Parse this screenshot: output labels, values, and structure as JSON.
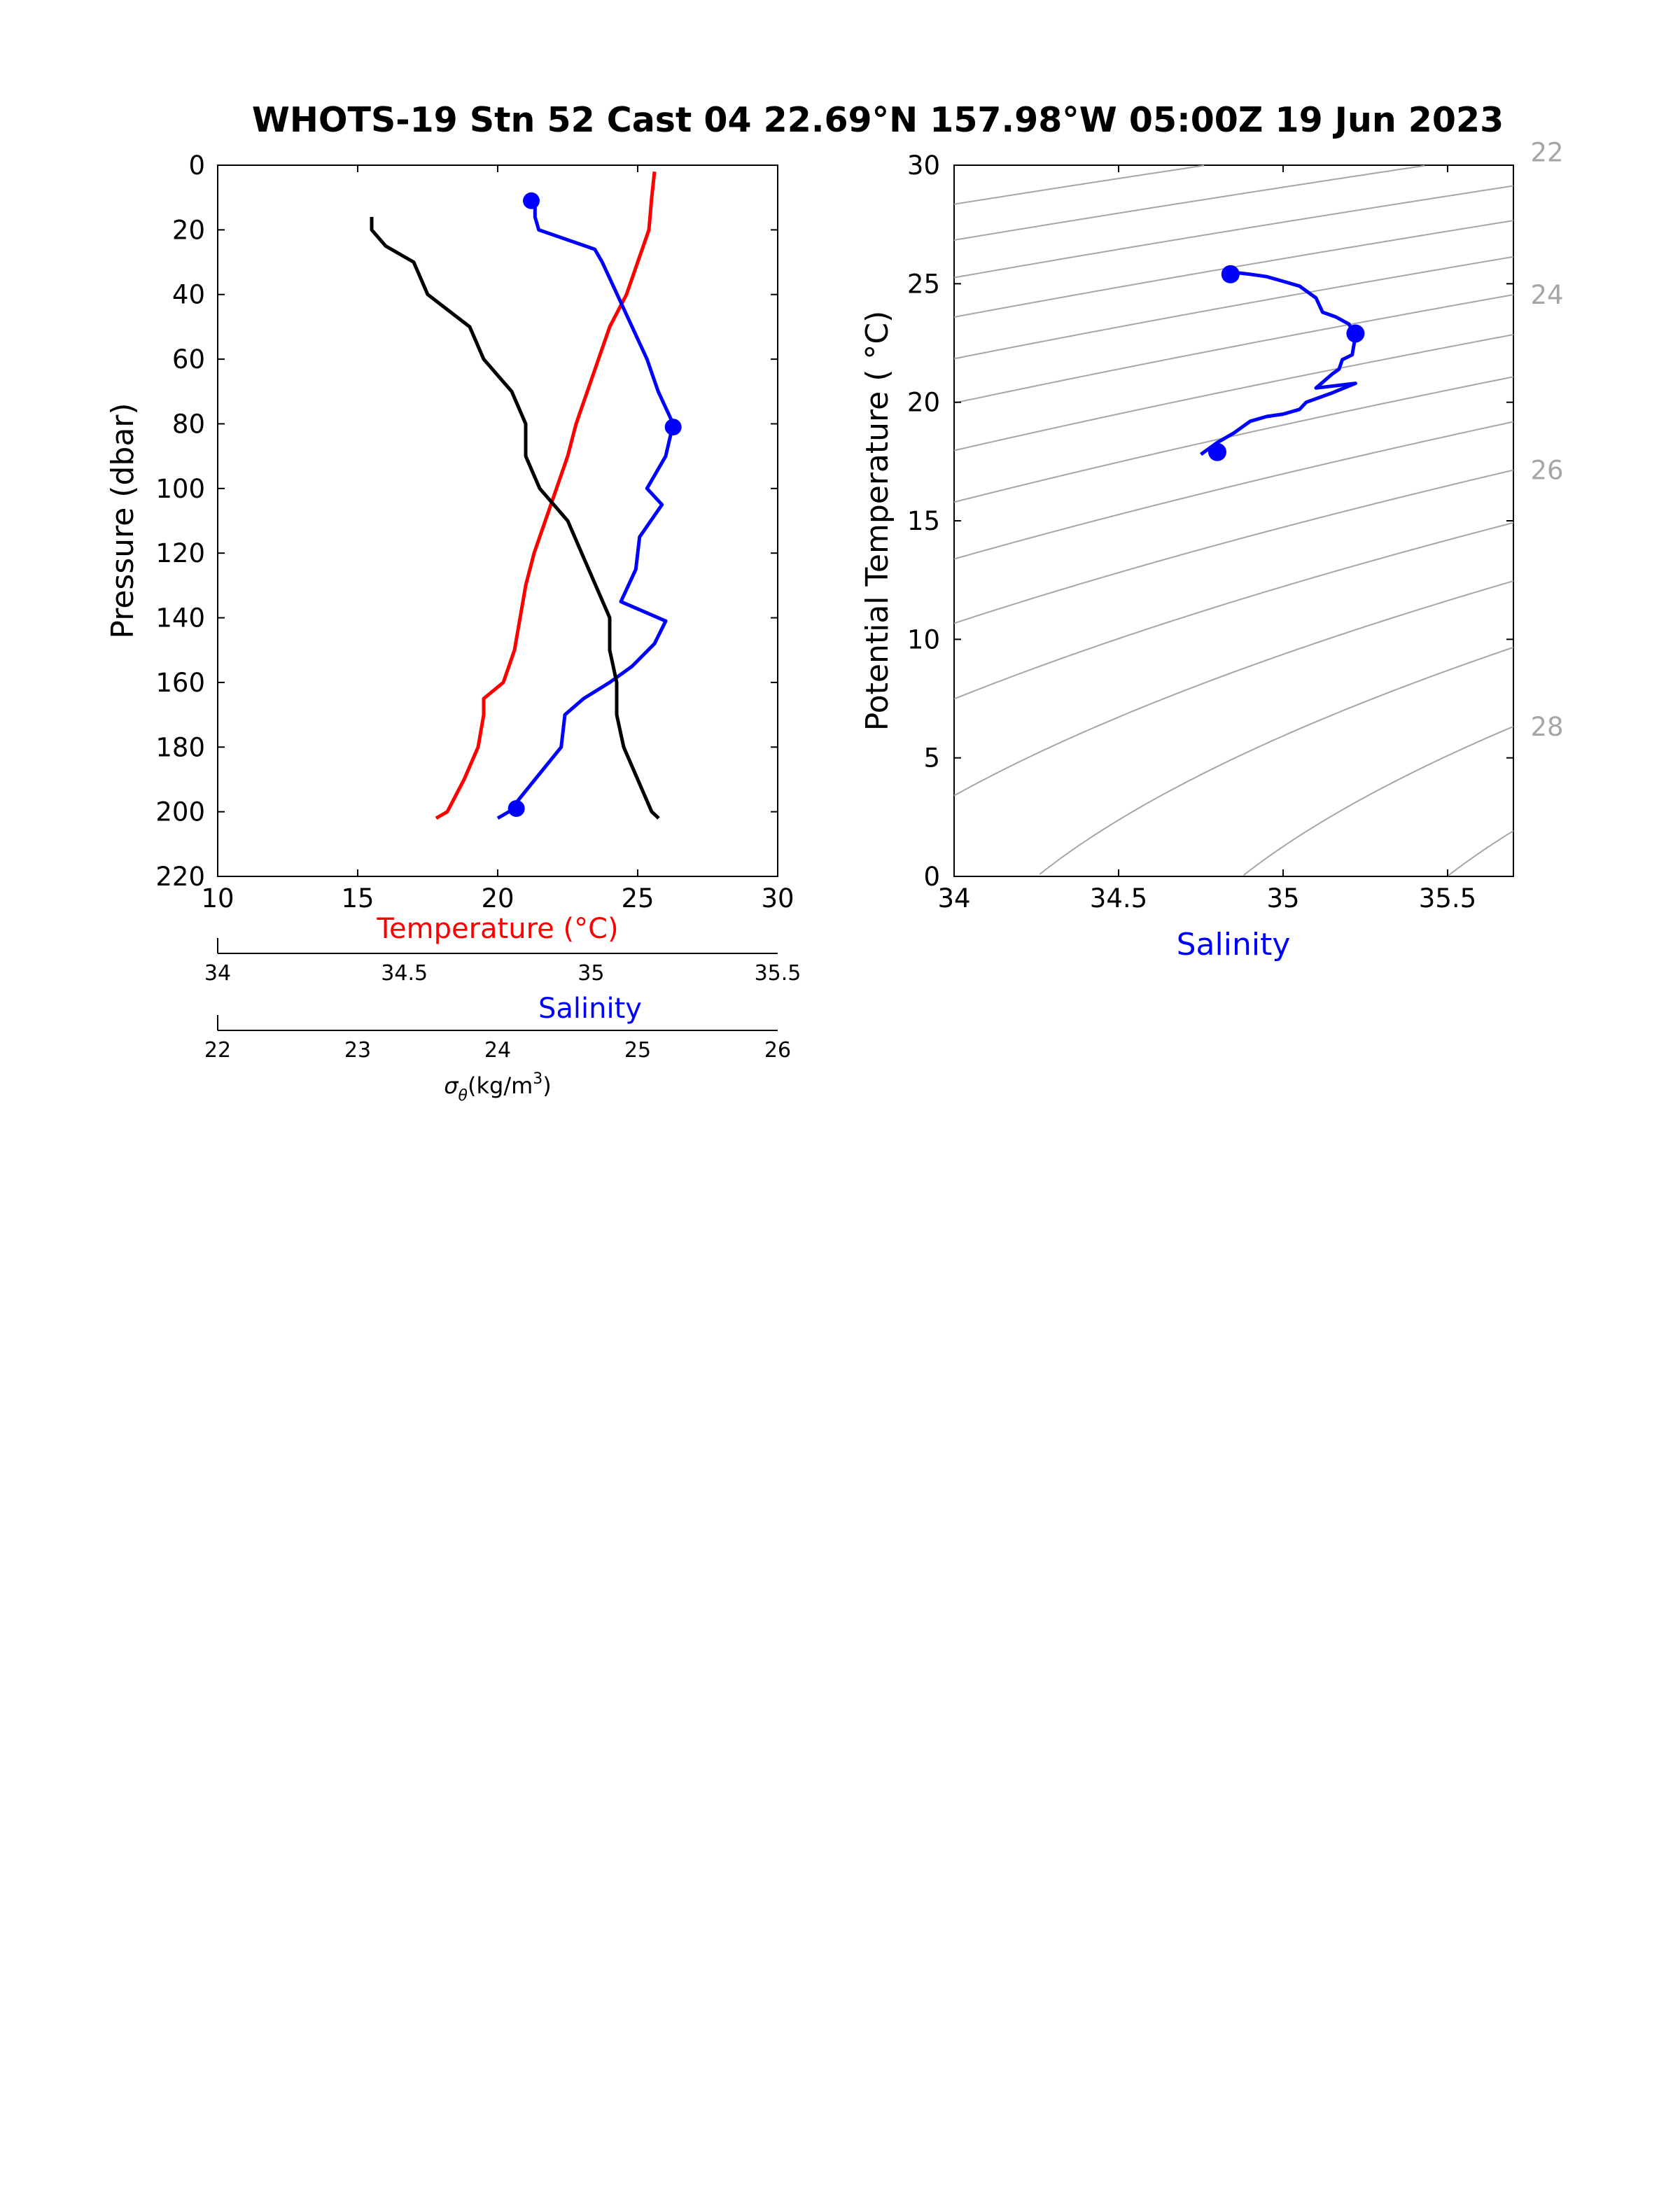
{
  "title": "WHOTS-19 Stn 52 Cast 04   22.69°N 157.98°W   05:00Z 19 Jun 2023",
  "colors": {
    "temperature": "#ff0000",
    "salinity": "#0000ff",
    "density": "#000000",
    "isopycnal": "#a6a6a6"
  },
  "chart_data": [
    {
      "type": "line",
      "name": "profile",
      "ylabel": "Pressure (dbar)",
      "ylim": [
        0,
        220
      ],
      "yticks": [
        "0",
        "20",
        "40",
        "60",
        "80",
        "100",
        "120",
        "140",
        "160",
        "180",
        "200",
        "220"
      ],
      "axes": {
        "temperature": {
          "label": "Temperature (°C)",
          "lim": [
            10,
            30
          ],
          "ticks": [
            "10",
            "15",
            "20",
            "25",
            "30"
          ]
        },
        "salinity": {
          "label": "Salinity",
          "lim": [
            34,
            35.5
          ],
          "ticks": [
            "34",
            "34.5",
            "35",
            "35.5"
          ]
        },
        "sigma": {
          "label_symbol": "σ",
          "label_sub": "θ",
          "label_main": "(kg/m",
          "label_sup": "3",
          "label_close": ")",
          "lim": [
            22,
            26
          ],
          "ticks": [
            "22",
            "23",
            "24",
            "25",
            "26"
          ]
        }
      },
      "series": [
        {
          "key": "temperature",
          "pressure": [
            2,
            10,
            20,
            30,
            40,
            50,
            60,
            70,
            80,
            90,
            100,
            110,
            120,
            130,
            140,
            150,
            160,
            165,
            170,
            180,
            190,
            200,
            202
          ],
          "values": [
            25.6,
            25.5,
            25.4,
            25.0,
            24.6,
            24.0,
            23.6,
            23.2,
            22.8,
            22.5,
            22.1,
            21.7,
            21.3,
            21.0,
            20.8,
            20.6,
            20.2,
            19.5,
            19.5,
            19.3,
            18.8,
            18.2,
            17.8
          ]
        },
        {
          "key": "salinity",
          "pressure": [
            11,
            16,
            20,
            26,
            30,
            35,
            40,
            50,
            60,
            70,
            80,
            90,
            100,
            105,
            115,
            125,
            135,
            141,
            148,
            155,
            160,
            165,
            170,
            180,
            190,
            200,
            202
          ],
          "values": [
            34.85,
            34.85,
            34.86,
            35.01,
            35.03,
            35.05,
            35.07,
            35.11,
            35.15,
            35.18,
            35.22,
            35.2,
            35.15,
            35.19,
            35.13,
            35.12,
            35.08,
            35.2,
            35.17,
            35.11,
            35.05,
            34.98,
            34.93,
            34.92,
            34.85,
            34.78,
            34.75
          ],
          "markers": [
            [
              11,
              34.84
            ],
            [
              81,
              35.22
            ],
            [
              199,
              34.8
            ]
          ]
        },
        {
          "key": "sigma",
          "pressure": [
            16,
            20,
            25,
            30,
            40,
            50,
            60,
            70,
            80,
            90,
            100,
            110,
            120,
            130,
            140,
            150,
            160,
            170,
            180,
            190,
            200,
            202
          ],
          "values": [
            23.1,
            23.1,
            23.2,
            23.4,
            23.5,
            23.8,
            23.9,
            24.1,
            24.2,
            24.2,
            24.3,
            24.5,
            24.6,
            24.7,
            24.8,
            24.8,
            24.85,
            24.85,
            24.9,
            25.0,
            25.1,
            25.15
          ]
        }
      ]
    },
    {
      "type": "line",
      "name": "theta-s",
      "xlabel": "Salinity",
      "ylabel": "Potential Temperature ( °C)",
      "xlim": [
        34,
        35.7
      ],
      "ylim": [
        0,
        30
      ],
      "xticks": [
        "34",
        "34.5",
        "35",
        "35.5"
      ],
      "yticks": [
        "0",
        "5",
        "10",
        "15",
        "20",
        "25",
        "30"
      ],
      "isopycnal_labels": [
        "22",
        "24",
        "26",
        "28"
      ],
      "series": [
        {
          "name": "",
          "salinity": [
            34.84,
            34.9,
            34.95,
            35.0,
            35.05,
            35.1,
            35.12,
            35.16,
            35.2,
            35.22,
            35.21,
            35.18,
            35.17,
            35.15,
            35.1,
            35.22,
            35.15,
            35.07,
            35.05,
            35.0,
            34.95,
            34.9,
            34.85,
            34.8,
            34.75
          ],
          "theta": [
            25.5,
            25.4,
            25.3,
            25.1,
            24.9,
            24.4,
            23.8,
            23.6,
            23.3,
            22.8,
            22.0,
            21.8,
            21.4,
            21.2,
            20.6,
            20.8,
            20.4,
            20.0,
            19.7,
            19.5,
            19.4,
            19.2,
            18.7,
            18.3,
            17.8
          ],
          "markers": [
            [
              34.84,
              25.4
            ],
            [
              35.22,
              22.9
            ],
            [
              34.8,
              17.9
            ]
          ]
        }
      ]
    }
  ]
}
